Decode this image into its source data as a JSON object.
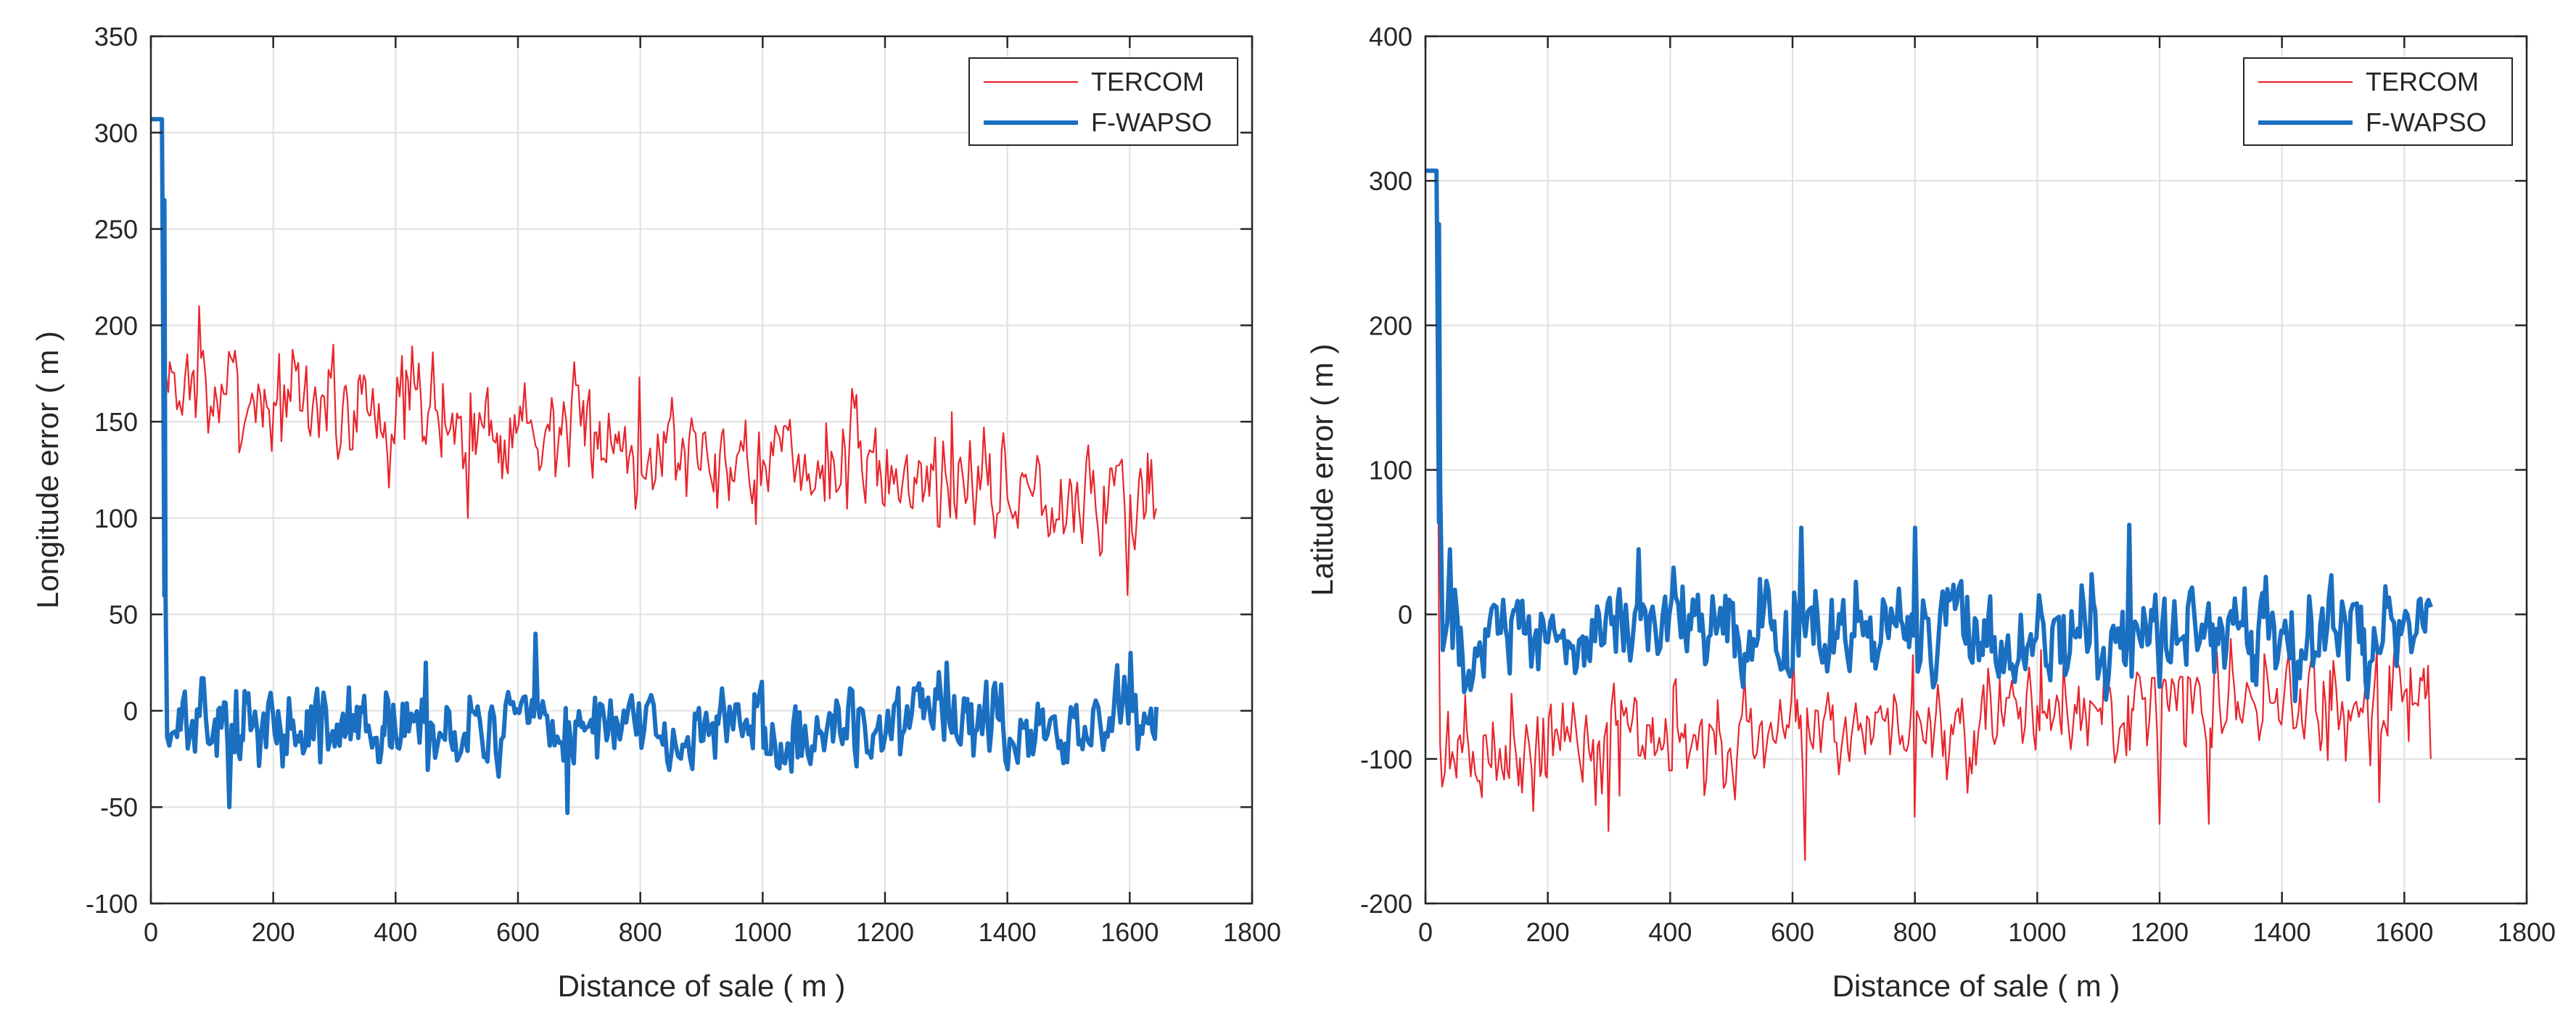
{
  "colors": {
    "tercom": "#e8262d",
    "fwapso": "#1a6fc1",
    "grid": "#e0e0e0",
    "axis": "#262626"
  },
  "chart_data": [
    {
      "type": "line",
      "xlabel": "Distance of sale ( m )",
      "ylabel": "Longitude error ( m )",
      "xlim": [
        0,
        1800
      ],
      "ylim": [
        -100,
        350
      ],
      "xticks": [
        0,
        200,
        400,
        600,
        800,
        1000,
        1200,
        1400,
        1600,
        1800
      ],
      "yticks": [
        -100,
        -50,
        0,
        50,
        100,
        150,
        200,
        250,
        300,
        350
      ],
      "grid": true,
      "legend_position": "top-right",
      "series": [
        {
          "name": "TERCOM",
          "color_key": "tercom",
          "style": "thin",
          "profile": {
            "initial_value": 307,
            "initial_until": 18,
            "drop_to": 165,
            "trend_start": 170,
            "trend_end": 108,
            "noise": 16,
            "seed": 7
          },
          "x": [
            0,
            18,
            20,
            60,
            80,
            200,
            300,
            460,
            520,
            610,
            800,
            1000,
            1150,
            1310,
            1400,
            1595,
            1645
          ],
          "values": [
            307,
            307,
            165,
            185,
            210,
            160,
            190,
            186,
            100,
            170,
            173,
            130,
            157,
            155,
            110,
            60,
            105
          ]
        },
        {
          "name": "F-WAPSO",
          "color_key": "fwapso",
          "style": "thick",
          "profile": {
            "initial_value": 307,
            "initial_until": 18,
            "drop_to": -10,
            "trend_start": -10,
            "trend_end": -8,
            "noise": 12,
            "seed": 13
          },
          "x": [
            0,
            18,
            22,
            25,
            130,
            450,
            630,
            680,
            1000,
            1300,
            1600,
            1645
          ],
          "values": [
            307,
            307,
            265,
            60,
            -50,
            25,
            40,
            -53,
            15,
            25,
            30,
            2
          ]
        }
      ],
      "x_extent": 1645
    },
    {
      "type": "line",
      "xlabel": "Distance of sale ( m )",
      "ylabel": "Latitude error ( m )",
      "xlim": [
        0,
        1800
      ],
      "ylim": [
        -200,
        400
      ],
      "xticks": [
        0,
        200,
        400,
        600,
        800,
        1000,
        1200,
        1400,
        1600,
        1800
      ],
      "yticks": [
        -200,
        -100,
        0,
        100,
        200,
        300,
        400
      ],
      "grid": true,
      "legend_position": "top-right",
      "series": [
        {
          "name": "TERCOM",
          "color_key": "tercom",
          "style": "thin",
          "profile": {
            "initial_value": 307,
            "initial_until": 18,
            "drop_to": -90,
            "trend_start": -95,
            "trend_end": -55,
            "noise": 22,
            "seed": 21
          },
          "x": [
            0,
            18,
            25,
            300,
            620,
            800,
            1200,
            1280,
            1560,
            1645
          ],
          "values": [
            307,
            307,
            -90,
            -150,
            -170,
            -140,
            -145,
            -145,
            -130,
            -100
          ]
        },
        {
          "name": "F-WAPSO",
          "color_key": "fwapso",
          "style": "thick",
          "profile": {
            "initial_value": 307,
            "initial_until": 18,
            "drop_to": -5,
            "trend_start": -10,
            "trend_end": -15,
            "noise": 20,
            "seed": 33
          },
          "x": [
            0,
            18,
            22,
            25,
            40,
            350,
            615,
            800,
            1150,
            1200,
            1640,
            1645
          ],
          "values": [
            307,
            307,
            270,
            90,
            45,
            45,
            60,
            60,
            62,
            -50,
            10,
            5
          ]
        }
      ],
      "x_extent": 1645
    }
  ]
}
